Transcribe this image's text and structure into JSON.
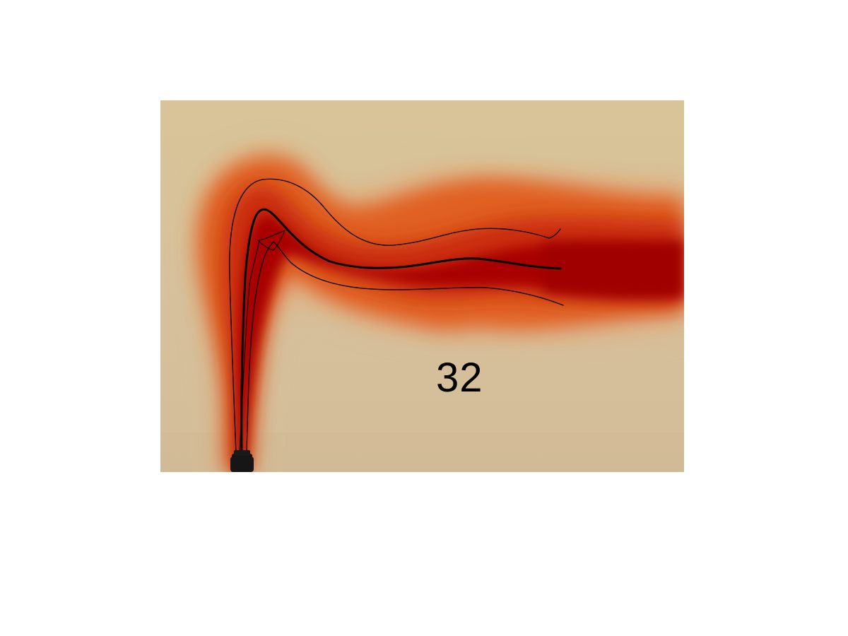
{
  "frame_number": "32",
  "colors": {
    "background": "#d6c19a",
    "plume_core": "#a80500",
    "plume_mid": "#d63a0b",
    "plume_edge": "#e87a3a",
    "streamline": "#000000",
    "nozzle": "#111111"
  },
  "icons": {
    "nozzle": "nozzle-icon"
  }
}
